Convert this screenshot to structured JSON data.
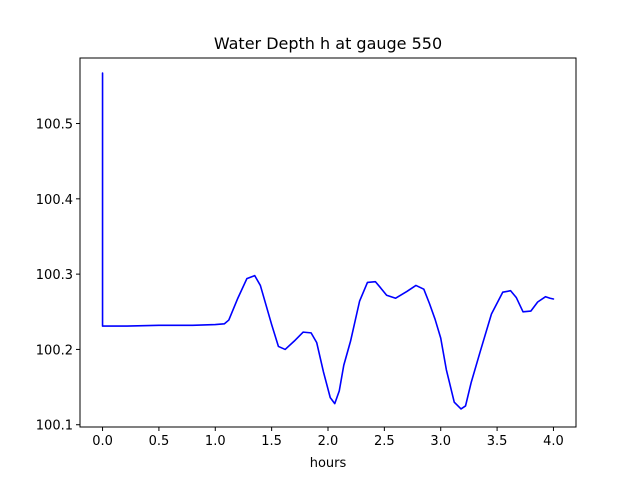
{
  "chart_data": {
    "type": "line",
    "title": "Water Depth h at gauge 550",
    "xlabel": "hours",
    "ylabel": "",
    "xlim": [
      -0.2,
      4.2
    ],
    "ylim": [
      100.097,
      100.587
    ],
    "grid": false,
    "x_ticks": [
      0.0,
      0.5,
      1.0,
      1.5,
      2.0,
      2.5,
      3.0,
      3.5,
      4.0
    ],
    "x_tick_labels": [
      "0.0",
      "0.5",
      "1.0",
      "1.5",
      "2.0",
      "2.5",
      "3.0",
      "3.5",
      "4.0"
    ],
    "y_ticks": [
      100.1,
      100.2,
      100.3,
      100.4,
      100.5
    ],
    "y_tick_labels": [
      "100.1",
      "100.2",
      "100.3",
      "100.4",
      "100.5"
    ],
    "series": [
      {
        "color": "#0000ff",
        "x": [
          0.0,
          0.0,
          0.002,
          0.2,
          0.5,
          0.8,
          1.0,
          1.08,
          1.12,
          1.2,
          1.28,
          1.35,
          1.4,
          1.5,
          1.56,
          1.62,
          1.7,
          1.78,
          1.85,
          1.9,
          1.96,
          2.02,
          2.06,
          2.1,
          2.14,
          2.2,
          2.28,
          2.35,
          2.42,
          2.46,
          2.52,
          2.6,
          2.7,
          2.78,
          2.85,
          2.9,
          2.95,
          3.0,
          3.05,
          3.12,
          3.18,
          3.22,
          3.27,
          3.35,
          3.45,
          3.55,
          3.62,
          3.67,
          3.73,
          3.8,
          3.86,
          3.93,
          3.97,
          4.0
        ],
        "y": [
          100.567,
          100.231,
          100.231,
          100.231,
          100.232,
          100.232,
          100.233,
          100.234,
          100.239,
          100.268,
          100.294,
          100.298,
          100.285,
          100.233,
          100.204,
          100.2,
          100.211,
          100.223,
          100.222,
          100.209,
          100.17,
          100.136,
          100.128,
          100.145,
          100.179,
          100.211,
          100.264,
          100.289,
          100.29,
          100.283,
          100.272,
          100.268,
          100.277,
          100.285,
          100.28,
          100.261,
          100.24,
          100.215,
          100.173,
          100.13,
          100.121,
          100.125,
          100.156,
          100.197,
          100.247,
          100.276,
          100.278,
          100.269,
          100.25,
          100.251,
          100.263,
          100.27,
          100.268,
          100.267
        ]
      }
    ]
  }
}
